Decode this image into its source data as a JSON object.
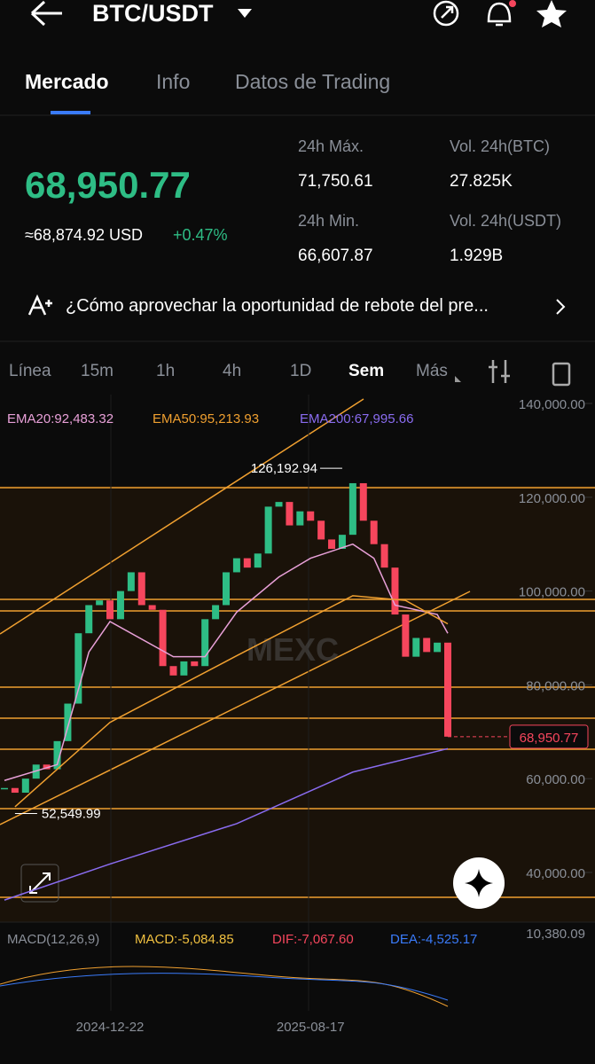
{
  "header": {
    "pair": "BTC/USDT"
  },
  "tabs": [
    "Mercado",
    "Info",
    "Datos de Trading"
  ],
  "ticker": {
    "price": "68,950.77",
    "usd": "≈68,874.92 USD",
    "change": "+0.47%"
  },
  "stats": [
    {
      "label": "24h Máx.",
      "value": "71,750.61"
    },
    {
      "label": "Vol. 24h(BTC)",
      "value": "27.825K"
    },
    {
      "label": "24h Min.",
      "value": "66,607.87"
    },
    {
      "label": "Vol. 24h(USDT)",
      "value": "1.929B"
    }
  ],
  "banner": "¿Cómo aprovechar la oportunidad de rebote del pre...",
  "timeframes": [
    "Línea",
    "15m",
    "1h",
    "4h",
    "1D",
    "Sem",
    "Más"
  ],
  "chart_data": {
    "type": "candlestick",
    "categories": [
      null,
      null,
      null,
      null,
      null,
      null,
      null,
      null,
      null,
      null,
      "2024-12-22",
      null,
      null,
      null,
      null,
      null,
      null,
      null,
      null,
      null,
      null,
      null,
      null,
      null,
      null,
      null,
      null,
      null,
      null,
      "2025-08-17",
      null,
      null,
      null,
      null,
      null,
      null,
      null,
      null,
      null,
      null,
      null,
      null,
      null
    ],
    "close": [
      58000,
      57000,
      60000,
      63000,
      62000,
      68000,
      76000,
      91000,
      97000,
      98000,
      94000,
      100000,
      104000,
      97000,
      96000,
      84000,
      82000,
      85000,
      84000,
      94000,
      97000,
      104000,
      107000,
      105000,
      108000,
      118000,
      119000,
      114000,
      117000,
      115000,
      111000,
      109000,
      112000,
      123000,
      115000,
      110000,
      105000,
      95000,
      86000,
      90000,
      87000,
      89000,
      68950.77
    ],
    "up_color": "#2ebd85",
    "down_color": "#f6465d",
    "ylim": [
      29400,
      141900
    ],
    "yticks": [
      {
        "value": 140000,
        "label": "140,000.00"
      },
      {
        "value": 120000,
        "label": "120,000.00"
      },
      {
        "value": 100000,
        "label": "100,000.00"
      },
      {
        "value": 80000,
        "label": "80,000.00"
      },
      {
        "value": 60000,
        "label": "60,000.00"
      },
      {
        "value": 40000,
        "label": "40,000.00"
      }
    ],
    "last_price": {
      "value": 68950.77,
      "label": "68,950.77"
    },
    "annotations": [
      {
        "value": 126192.94,
        "label": "126,192.94",
        "x": 32
      },
      {
        "value": 52549.99,
        "label": "52,549.99",
        "x": 1
      }
    ],
    "indicators": [
      {
        "name": "EMA20:92,483.32",
        "color": "#e8a0d8",
        "x": [
          0,
          5,
          8,
          10,
          16,
          19,
          22,
          26,
          29,
          33,
          35,
          37,
          41,
          42
        ],
        "values": [
          59600,
          63000,
          87000,
          93500,
          86000,
          86000,
          95500,
          103000,
          107000,
          110000,
          107000,
          97000,
          95000,
          91000
        ]
      },
      {
        "name": "EMA50:95,213.93",
        "color": "#f0a030",
        "x": [
          1,
          10,
          22,
          33,
          38,
          42
        ],
        "values": [
          54000,
          72000,
          86200,
          99000,
          98000,
          93000
        ]
      },
      {
        "name": "EMA200:67,995.66",
        "color": "#8a6cf0",
        "x": [
          0,
          10,
          22,
          33,
          42
        ],
        "values": [
          34100,
          41800,
          50400,
          61400,
          66400
        ]
      }
    ],
    "macd": {
      "title": "MACD(12,26,9)",
      "macd": "MACD:-5,084.85",
      "dif": "DIF:-7,067.60",
      "dea": "DEA:-4,525.17",
      "scale": "10,380.09"
    }
  }
}
